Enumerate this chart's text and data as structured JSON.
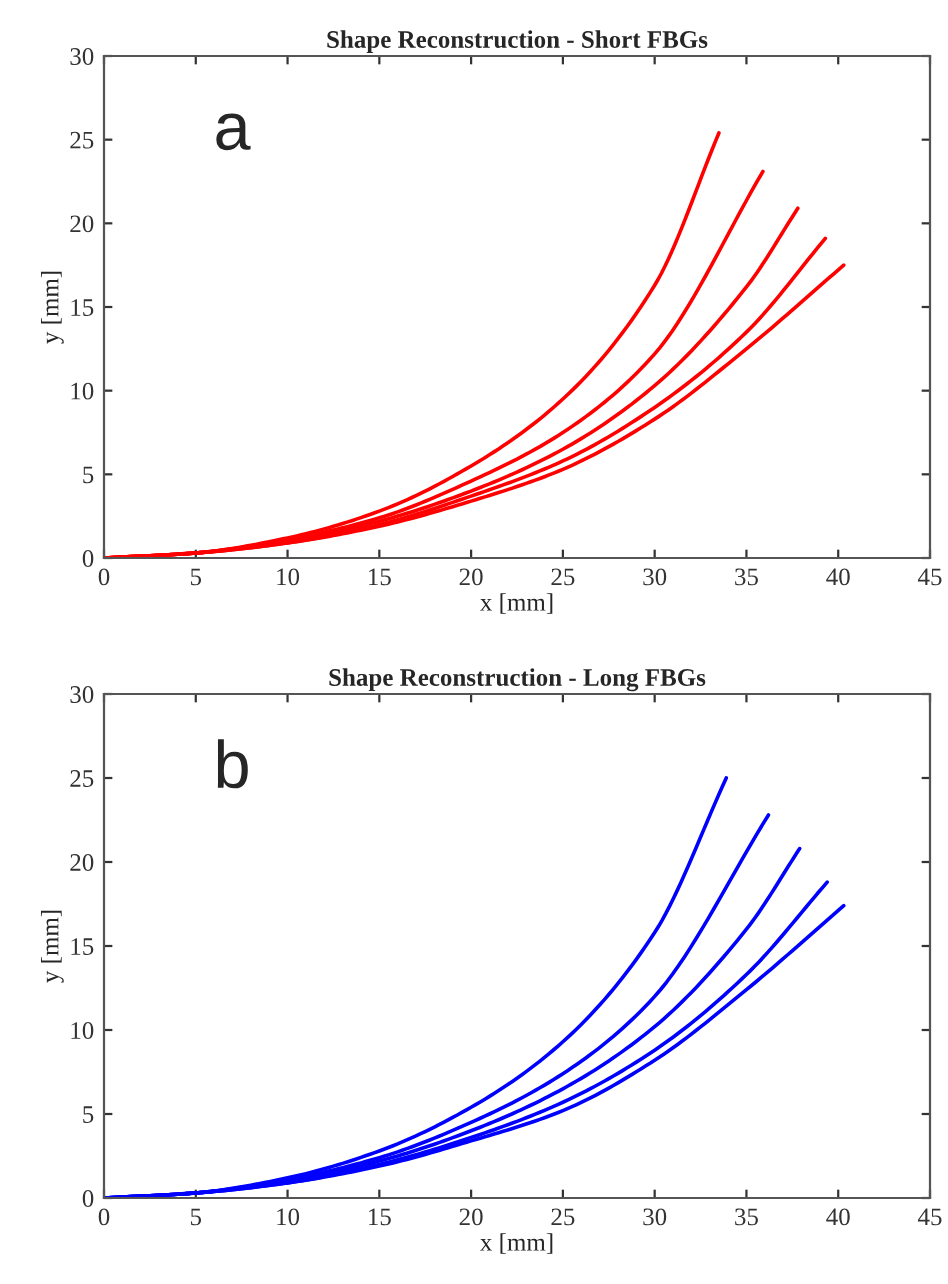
{
  "chart_data": [
    {
      "type": "line",
      "title": "Shape Reconstruction - Short FBGs",
      "xlabel": "x [mm]",
      "ylabel": "y [mm]",
      "annotations": [
        "a"
      ],
      "xlim": [
        0,
        45
      ],
      "ylim": [
        0,
        30
      ],
      "xticks": [
        0,
        5,
        10,
        15,
        20,
        25,
        30,
        35,
        40,
        45
      ],
      "yticks": [
        0,
        5,
        10,
        15,
        20,
        25,
        30
      ],
      "grid": false,
      "series": [
        {
          "color": "#ff0000",
          "x": [
            0,
            5,
            10,
            15,
            20,
            25,
            30,
            33.5
          ],
          "values": [
            0,
            0.3,
            1.2,
            2.8,
            5.5,
            9.5,
            16.3,
            25.4
          ]
        },
        {
          "color": "#ff0000",
          "x": [
            0,
            5,
            10,
            15,
            20,
            25,
            30,
            35.9
          ],
          "values": [
            0,
            0.3,
            1.1,
            2.4,
            4.6,
            7.5,
            12.2,
            23.1
          ]
        },
        {
          "color": "#ff0000",
          "x": [
            0,
            5,
            10,
            15,
            20,
            25,
            30,
            35,
            37.8
          ],
          "values": [
            0,
            0.3,
            1.0,
            2.2,
            4.0,
            6.5,
            10.3,
            16.2,
            20.9
          ]
        },
        {
          "color": "#ff0000",
          "x": [
            0,
            5,
            10,
            15,
            20,
            25,
            30,
            35,
            39.3
          ],
          "values": [
            0,
            0.3,
            0.9,
            2.0,
            3.7,
            5.8,
            9.0,
            13.5,
            19.1
          ]
        },
        {
          "color": "#ff0000",
          "x": [
            0,
            5,
            10,
            15,
            20,
            25,
            30,
            35,
            40.3
          ],
          "values": [
            0,
            0.3,
            0.9,
            1.9,
            3.4,
            5.3,
            8.3,
            12.5,
            17.5
          ]
        }
      ]
    },
    {
      "type": "line",
      "title": "Shape Reconstruction - Long FBGs",
      "xlabel": "x [mm]",
      "ylabel": "y [mm]",
      "annotations": [
        "b"
      ],
      "xlim": [
        0,
        45
      ],
      "ylim": [
        0,
        30
      ],
      "xticks": [
        0,
        5,
        10,
        15,
        20,
        25,
        30,
        35,
        40,
        45
      ],
      "yticks": [
        0,
        5,
        10,
        15,
        20,
        25,
        30
      ],
      "grid": false,
      "series": [
        {
          "color": "#0000ff",
          "x": [
            0,
            5,
            10,
            15,
            20,
            25,
            30,
            33.9
          ],
          "values": [
            0,
            0.3,
            1.2,
            2.8,
            5.4,
            9.3,
            15.8,
            25.0
          ]
        },
        {
          "color": "#0000ff",
          "x": [
            0,
            5,
            10,
            15,
            20,
            25,
            30,
            36.2
          ],
          "values": [
            0,
            0.3,
            1.1,
            2.4,
            4.5,
            7.4,
            12.0,
            22.8
          ]
        },
        {
          "color": "#0000ff",
          "x": [
            0,
            5,
            10,
            15,
            20,
            25,
            30,
            35,
            37.9
          ],
          "values": [
            0,
            0.3,
            1.0,
            2.2,
            4.0,
            6.5,
            10.2,
            16.0,
            20.8
          ]
        },
        {
          "color": "#0000ff",
          "x": [
            0,
            5,
            10,
            15,
            20,
            25,
            30,
            35,
            39.4
          ],
          "values": [
            0,
            0.3,
            0.9,
            2.0,
            3.6,
            5.7,
            8.8,
            13.3,
            18.8
          ]
        },
        {
          "color": "#0000ff",
          "x": [
            0,
            5,
            10,
            15,
            20,
            25,
            30,
            35,
            40.3
          ],
          "values": [
            0,
            0.3,
            0.9,
            1.9,
            3.4,
            5.2,
            8.2,
            12.4,
            17.4
          ]
        }
      ]
    }
  ]
}
